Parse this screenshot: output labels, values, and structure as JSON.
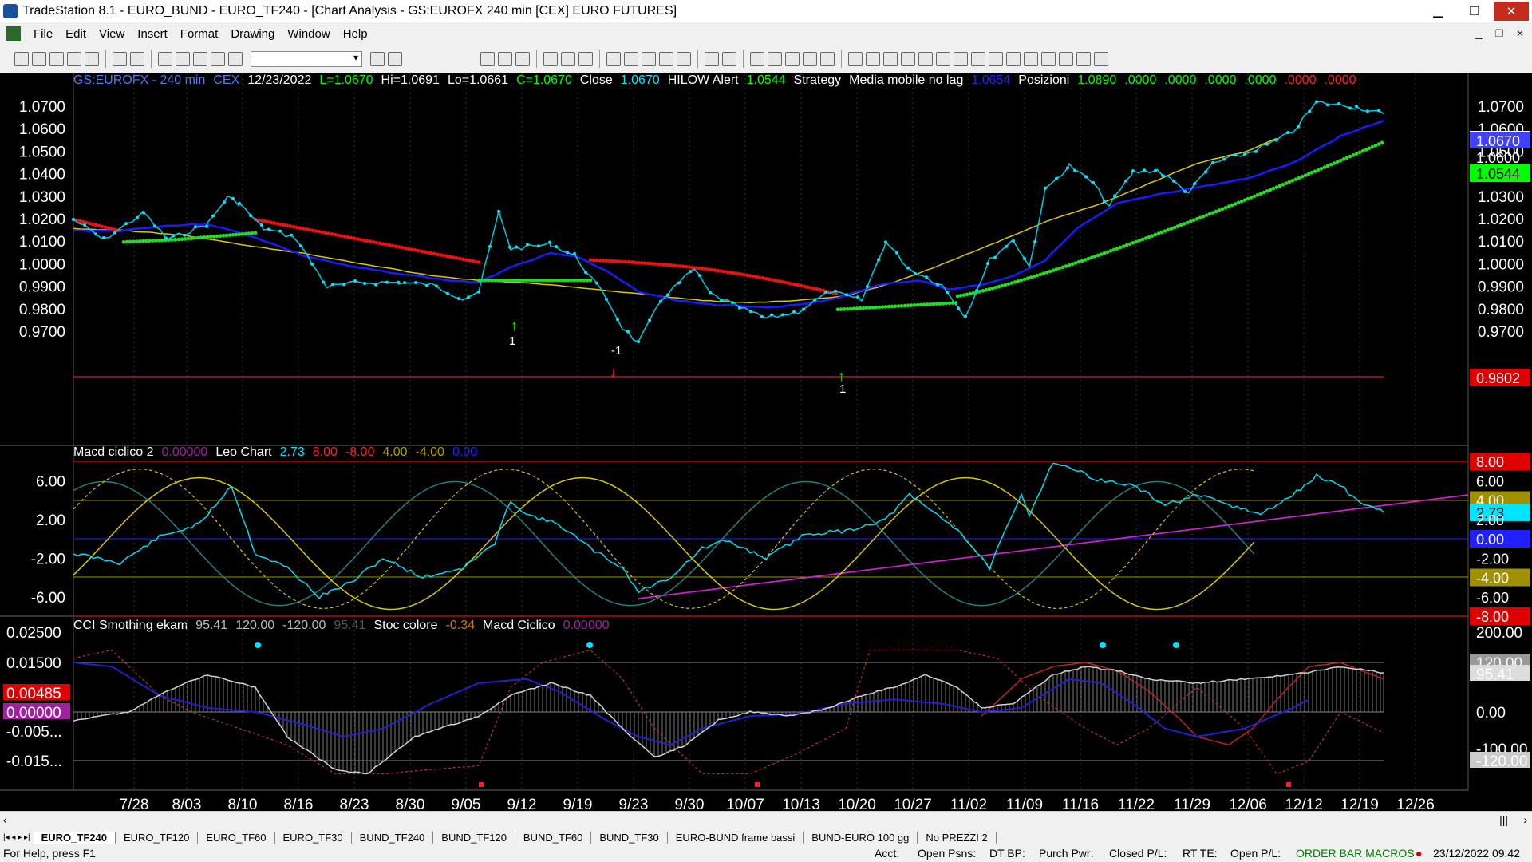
{
  "window": {
    "title": "TradeStation 8.1 - EURO_BUND - EURO_TF240 - [Chart Analysis - GS:EUROFX  240 min  [CEX] EURO FUTURES]",
    "minimize": "▁",
    "restore": "❐",
    "close": "✕"
  },
  "menu": [
    "File",
    "Edit",
    "View",
    "Insert",
    "Format",
    "Drawing",
    "Window",
    "Help"
  ],
  "price_header": {
    "symbol": "GS:EUROFX - 240 min",
    "exchange": "CEX",
    "date": "12/23/2022",
    "last": "L=1.0670",
    "high": "Hi=1.0691",
    "low": "Lo=1.0661",
    "close": "C=1.0670",
    "close_label": "Close",
    "close_val": "1.0670",
    "hilow": "HILOW Alert",
    "hilow_val": "1.0544",
    "strategy": "Strategy",
    "ma": "Media mobile no lag",
    "ma_val": "1.0654",
    "pos": "Posizioni",
    "pos_vals": [
      "1.0890",
      ".0000",
      ".0000",
      ".0000",
      ".0000",
      ".0000",
      ".0000"
    ]
  },
  "macd_header": {
    "name": "Macd ciclico 2",
    "v0": "0.00000",
    "leo": "Leo Chart",
    "v1": "2.73",
    "v2": "8.00",
    "v3": "-8.00",
    "v4": "4.00",
    "v5": "-4.00",
    "v6": "0.00"
  },
  "cci_header": {
    "name": "CCI Smothing ekam",
    "v1": "95.41",
    "v2": "120.00",
    "v3": "-120.00",
    "v4": "95.41",
    "stoc": "Stoc colore",
    "stoc_val": "-0.34",
    "macd": "Macd Ciclico",
    "macd_val": "0.00000"
  },
  "price_axis": [
    "1.0700",
    "1.0600",
    "1.0500",
    "1.0400",
    "1.0300",
    "1.0200",
    "1.0100",
    "1.0000",
    "0.9900",
    "0.9800",
    "0.9700"
  ],
  "price_badges": {
    "close": "1.0670",
    "hilow": "1.0544",
    "line": "0.9802",
    "partial": "1.0600"
  },
  "macd_axis": [
    "6.00",
    "2.00",
    "-2.00",
    "-6.00"
  ],
  "macd_right_axis": [
    "8.00",
    "6.00",
    "4.00",
    "2.73",
    "2.00",
    "0.00",
    "-2.00",
    "-4.00",
    "-6.00",
    "-8.00"
  ],
  "cci_axis_left": [
    "0.02500",
    "0.01500",
    "0.00485",
    "0.00000",
    "-0.005...",
    "-0.015..."
  ],
  "cci_axis_right": [
    "200.00",
    "120.00",
    "95.41",
    "0.00",
    "-100.00",
    "-120.00"
  ],
  "dates": [
    "7/28",
    "8/03",
    "8/10",
    "8/16",
    "8/23",
    "8/30",
    "9/05",
    "9/12",
    "9/19",
    "9/23",
    "9/30",
    "10/07",
    "10/13",
    "10/20",
    "10/27",
    "11/02",
    "11/09",
    "11/16",
    "11/22",
    "11/29",
    "12/06",
    "12/12",
    "12/19",
    "12/26"
  ],
  "signals": {
    "long1": "1",
    "short1": "-1",
    "long2": "1"
  },
  "tabs": [
    "EURO_TF240",
    "EURO_TF120",
    "EURO_TF60",
    "EURO_TF30",
    "BUND_TF240",
    "BUND_TF120",
    "BUND_TF60",
    "BUND_TF30",
    "EURO-BUND frame bassi",
    "BUND-EURO 100 gg",
    "No PREZZI 2"
  ],
  "status": {
    "help": "For Help, press F1",
    "acct": "Acct:",
    "open_psns": "Open Psns:",
    "dtbp": "DT BP:",
    "purch": "Purch Pwr:",
    "closedpl": "Closed P/L:",
    "rtte": "RT TE:",
    "openpl": "Open P/L:",
    "macros": "ORDER BAR  MACROS",
    "datetime": "23/12/2022 09:42"
  },
  "colors": {
    "price": "#00e5ff",
    "ma_blue": "#1a1aff",
    "ma_yellow": "#d8c800",
    "dot_green": "#22dd22",
    "dot_red": "#ee1111",
    "magenta": "#d020d0",
    "hdr_green": "#00ff00",
    "hdr_cyan": "#00e5ff"
  }
}
